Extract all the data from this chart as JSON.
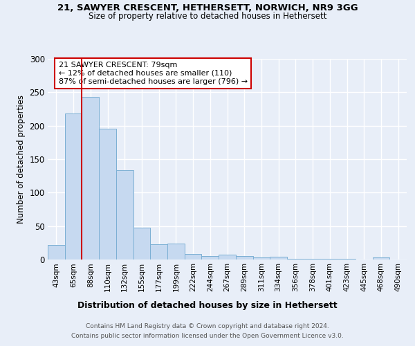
{
  "title_line1": "21, SAWYER CRESCENT, HETHERSETT, NORWICH, NR9 3GG",
  "title_line2": "Size of property relative to detached houses in Hethersett",
  "xlabel": "Distribution of detached houses by size in Hethersett",
  "ylabel": "Number of detached properties",
  "categories": [
    "43sqm",
    "65sqm",
    "88sqm",
    "110sqm",
    "132sqm",
    "155sqm",
    "177sqm",
    "199sqm",
    "222sqm",
    "244sqm",
    "267sqm",
    "289sqm",
    "311sqm",
    "334sqm",
    "356sqm",
    "378sqm",
    "401sqm",
    "423sqm",
    "445sqm",
    "468sqm",
    "490sqm"
  ],
  "values": [
    22,
    218,
    243,
    196,
    133,
    48,
    23,
    24,
    8,
    5,
    7,
    5,
    3,
    4,
    1,
    1,
    1,
    1,
    0,
    3,
    0
  ],
  "bar_color": "#c6d9f0",
  "bar_edgecolor": "#7bafd4",
  "vline_x_index": 1.5,
  "vline_color": "#cc0000",
  "annotation_box_edgecolor": "#cc0000",
  "marker_label": "21 SAWYER CRESCENT: 79sqm",
  "annotation_line2": "← 12% of detached houses are smaller (110)",
  "annotation_line3": "87% of semi-detached houses are larger (796) →",
  "ylim": [
    0,
    300
  ],
  "yticks": [
    0,
    50,
    100,
    150,
    200,
    250,
    300
  ],
  "footer_line1": "Contains HM Land Registry data © Crown copyright and database right 2024.",
  "footer_line2": "Contains public sector information licensed under the Open Government Licence v3.0.",
  "bg_color": "#e8eef8",
  "plot_bg_color": "#e8eef8"
}
